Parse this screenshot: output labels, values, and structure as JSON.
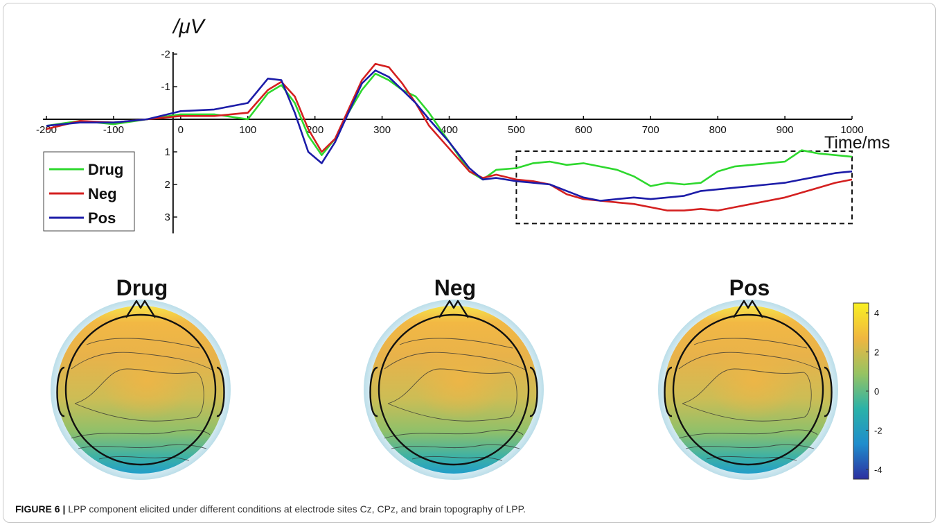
{
  "caption": {
    "label": "FIGURE 6 |",
    "text": " LPP component elicited under different conditions at electrode sites Cz, CPz, and brain topography of LPP."
  },
  "chart_data": [
    {
      "type": "line",
      "title": "",
      "ylabel": "/μV",
      "xlabel": "Time/ms",
      "xlim": [
        -200,
        1000
      ],
      "ylim": [
        -2,
        3
      ],
      "y_inverted": true,
      "x_ticks": [
        -200,
        -100,
        0,
        100,
        200,
        300,
        400,
        500,
        600,
        700,
        800,
        900,
        1000
      ],
      "x_tick_labels": [
        "-200",
        "-100",
        "0",
        "100",
        "200",
        "300",
        "400",
        "500",
        "600",
        "700",
        "800",
        "900",
        "1000"
      ],
      "y_ticks": [
        -2,
        -1,
        1,
        2,
        3
      ],
      "y_tick_labels": [
        "-2",
        "-1",
        "1",
        "2",
        "3"
      ],
      "grid": false,
      "legend_placement": "left",
      "highlight_window": {
        "x": [
          500,
          1000
        ],
        "y": [
          1,
          3.2
        ]
      },
      "series": [
        {
          "name": "Drug",
          "color": "#2ed82e",
          "x": [
            -200,
            -150,
            -100,
            -50,
            0,
            50,
            100,
            130,
            150,
            170,
            190,
            210,
            230,
            250,
            270,
            290,
            310,
            330,
            350,
            370,
            400,
            430,
            450,
            470,
            500,
            525,
            550,
            575,
            600,
            625,
            650,
            675,
            700,
            725,
            750,
            775,
            800,
            825,
            850,
            875,
            900,
            925,
            950,
            975,
            1000
          ],
          "y": [
            0.2,
            0.05,
            0.15,
            0.0,
            -0.15,
            -0.15,
            0.0,
            -0.8,
            -1.05,
            -0.5,
            0.5,
            1.1,
            0.6,
            -0.2,
            -0.9,
            -1.4,
            -1.2,
            -0.9,
            -0.7,
            -0.2,
            0.7,
            1.6,
            1.85,
            1.55,
            1.5,
            1.35,
            1.3,
            1.4,
            1.35,
            1.45,
            1.55,
            1.75,
            2.05,
            1.95,
            2.0,
            1.95,
            1.6,
            1.45,
            1.4,
            1.35,
            1.3,
            0.95,
            1.05,
            1.1,
            1.15
          ]
        },
        {
          "name": "Neg",
          "color": "#d42020",
          "x": [
            -200,
            -150,
            -100,
            -50,
            0,
            50,
            100,
            130,
            150,
            170,
            190,
            210,
            230,
            250,
            270,
            290,
            310,
            330,
            350,
            370,
            400,
            430,
            450,
            470,
            500,
            525,
            550,
            575,
            600,
            625,
            650,
            675,
            700,
            725,
            750,
            775,
            800,
            825,
            850,
            875,
            900,
            925,
            950,
            975,
            1000
          ],
          "y": [
            0.3,
            0.05,
            0.1,
            0.0,
            -0.1,
            -0.1,
            -0.2,
            -0.9,
            -1.15,
            -0.7,
            0.3,
            1.0,
            0.6,
            -0.3,
            -1.2,
            -1.7,
            -1.6,
            -1.1,
            -0.5,
            0.2,
            0.9,
            1.6,
            1.8,
            1.7,
            1.85,
            1.9,
            2.0,
            2.3,
            2.45,
            2.5,
            2.55,
            2.6,
            2.7,
            2.8,
            2.8,
            2.75,
            2.8,
            2.7,
            2.6,
            2.5,
            2.4,
            2.25,
            2.1,
            1.95,
            1.85
          ]
        },
        {
          "name": "Pos",
          "color": "#1c1ca8",
          "x": [
            -200,
            -150,
            -100,
            -50,
            0,
            50,
            100,
            130,
            150,
            170,
            190,
            210,
            230,
            250,
            270,
            290,
            310,
            330,
            350,
            370,
            400,
            430,
            450,
            470,
            500,
            525,
            550,
            575,
            600,
            625,
            650,
            675,
            700,
            725,
            750,
            775,
            800,
            825,
            850,
            875,
            900,
            925,
            950,
            975,
            1000
          ],
          "y": [
            0.2,
            0.1,
            0.1,
            0.0,
            -0.25,
            -0.3,
            -0.5,
            -1.25,
            -1.2,
            -0.2,
            1.0,
            1.35,
            0.7,
            -0.2,
            -1.1,
            -1.5,
            -1.3,
            -0.9,
            -0.5,
            0.0,
            0.7,
            1.5,
            1.85,
            1.8,
            1.9,
            1.95,
            2.0,
            2.2,
            2.4,
            2.5,
            2.45,
            2.4,
            2.45,
            2.4,
            2.35,
            2.2,
            2.15,
            2.1,
            2.05,
            2.0,
            1.95,
            1.85,
            1.75,
            1.65,
            1.6
          ]
        }
      ]
    },
    {
      "type": "heatmap",
      "title": "",
      "maps": [
        "Drug",
        "Neg",
        "Pos"
      ],
      "colorbar": {
        "range": [
          -4.5,
          4.5
        ],
        "ticks": [
          4,
          2,
          0,
          -2,
          -4
        ],
        "tick_labels": [
          "4",
          "2",
          "0",
          "-2",
          "-4"
        ],
        "colors": [
          "#2c2fa0",
          "#1f8dcc",
          "#2bb2a8",
          "#97c362",
          "#f0b640",
          "#f9f021"
        ]
      }
    }
  ]
}
